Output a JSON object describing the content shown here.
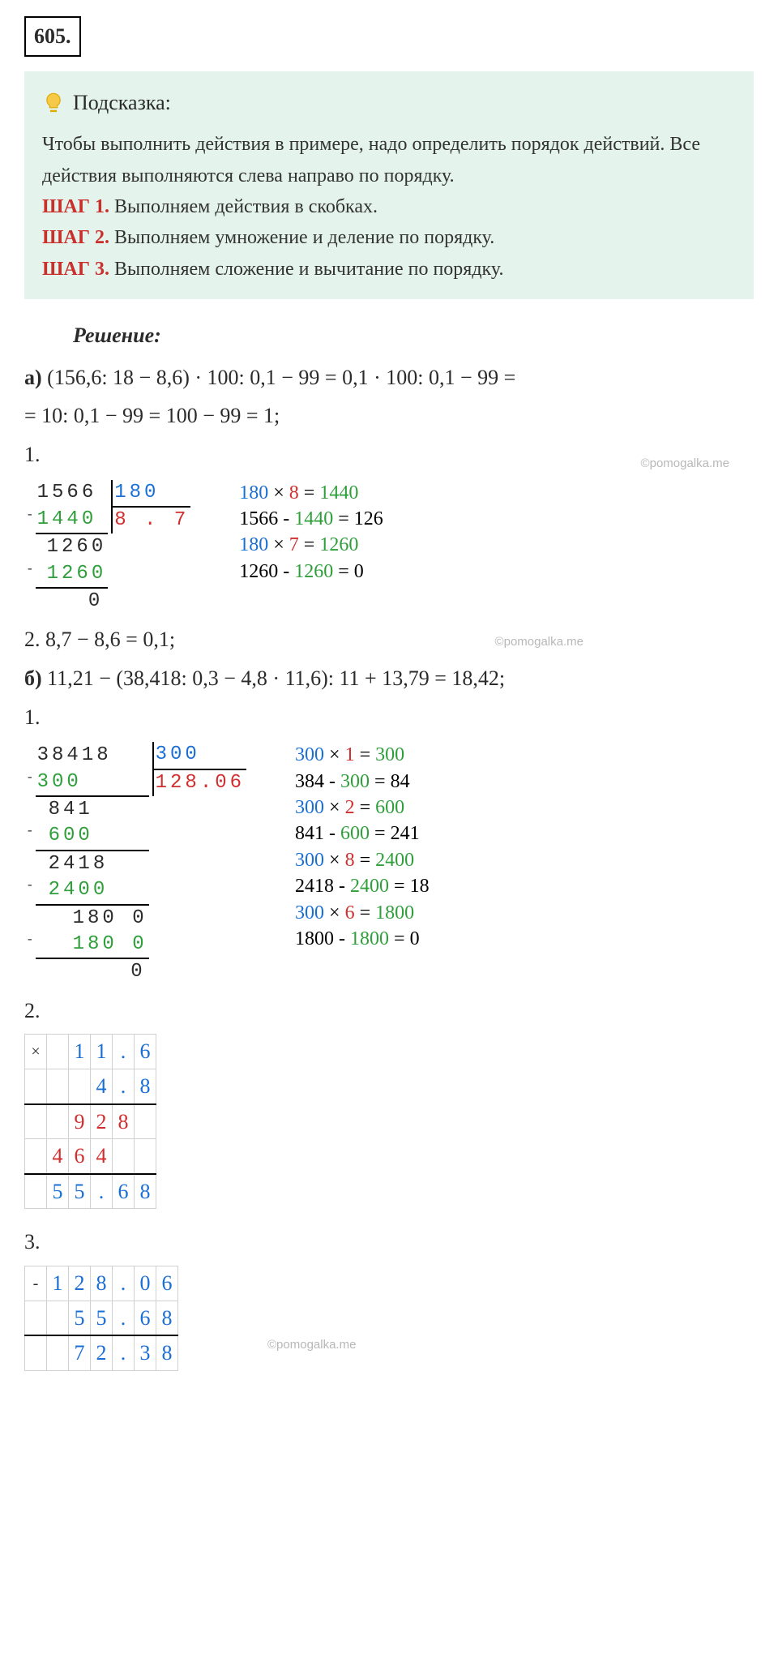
{
  "task_number": "605.",
  "hint": {
    "title": "Подсказка:",
    "intro": "Чтобы выполнить действия в примере, надо определить порядок действий. Все действия выполняются слева направо по порядку.",
    "steps": [
      {
        "label": "ШАГ 1.",
        "text": "Выполняем действия в скобках."
      },
      {
        "label": "ШАГ 2.",
        "text": "Выполняем умножение и деление по порядку."
      },
      {
        "label": "ШАГ 3.",
        "text": "Выполняем сложение и вычитание по порядку."
      }
    ]
  },
  "solution_title": "Решение:",
  "watermark_text": "©pomogalka.me",
  "partA": {
    "label": "а)",
    "expr_line1": "(156,6: 18 − 8,6) · 100: 0,1 − 99 = 0,1 · 100: 0,1 − 99 =",
    "expr_line2": "= 10: 0,1 − 99 = 100 − 99 = 1;",
    "step1_label": "1.",
    "div": {
      "dividend": "1566",
      "divisor": "180",
      "quotient": "8 . 7",
      "rows": [
        {
          "minus": true,
          "indent": 0,
          "text": "1440",
          "cls": "c-green"
        },
        {
          "minus": false,
          "indent": 1,
          "text": "1260",
          "cls": "c-black"
        },
        {
          "minus": true,
          "indent": 1,
          "text": "1260",
          "cls": "c-green",
          "ul": true
        },
        {
          "minus": false,
          "indent": 4,
          "text": "0",
          "cls": "c-black"
        }
      ],
      "notes": [
        [
          {
            "t": "180",
            "c": "c-blue"
          },
          {
            "t": " × ",
            "c": "c-black"
          },
          {
            "t": "8",
            "c": "c-red"
          },
          {
            "t": " = ",
            "c": "c-black"
          },
          {
            "t": "1440",
            "c": "c-green"
          }
        ],
        [
          {
            "t": "1566 - ",
            "c": "c-black"
          },
          {
            "t": "1440",
            "c": "c-green"
          },
          {
            "t": " = 126",
            "c": "c-black"
          }
        ],
        [
          {
            "t": "180",
            "c": "c-blue"
          },
          {
            "t": " × ",
            "c": "c-black"
          },
          {
            "t": "7",
            "c": "c-red"
          },
          {
            "t": " = ",
            "c": "c-black"
          },
          {
            "t": "1260",
            "c": "c-green"
          }
        ],
        [
          {
            "t": "1260 - ",
            "c": "c-black"
          },
          {
            "t": "1260",
            "c": "c-green"
          },
          {
            "t": " = 0",
            "c": "c-black"
          }
        ]
      ]
    },
    "step2": "2. 8,7 − 8,6 = 0,1;"
  },
  "partB": {
    "label": "б)",
    "expr": " 11,21 − (38,418: 0,3 − 4,8 · 11,6): 11 + 13,79 = 18,42;",
    "step1_label": "1.",
    "div": {
      "dividend": "38418",
      "divisor": "300",
      "quotient": "128.06",
      "rows": [
        {
          "minus": true,
          "indent": 0,
          "text": "300",
          "cls": "c-green",
          "ul": true
        },
        {
          "minus": false,
          "indent": 1,
          "text": "841",
          "cls": "c-black"
        },
        {
          "minus": true,
          "indent": 1,
          "text": "600",
          "cls": "c-green",
          "ul": true
        },
        {
          "minus": false,
          "indent": 1,
          "text": "2418",
          "cls": "c-black"
        },
        {
          "minus": true,
          "indent": 1,
          "text": "2400",
          "cls": "c-green",
          "ul": true
        },
        {
          "minus": false,
          "indent": 3,
          "text": "180 0",
          "cls": "c-black"
        },
        {
          "minus": true,
          "indent": 3,
          "text": "180 0",
          "cls": "c-green",
          "ul": true
        },
        {
          "minus": false,
          "indent": 7,
          "text": "0",
          "cls": "c-black"
        }
      ],
      "notes": [
        [
          {
            "t": "300",
            "c": "c-blue"
          },
          {
            "t": " × ",
            "c": "c-black"
          },
          {
            "t": "1",
            "c": "c-red"
          },
          {
            "t": " = ",
            "c": "c-black"
          },
          {
            "t": "300",
            "c": "c-green"
          }
        ],
        [
          {
            "t": "384 - ",
            "c": "c-black"
          },
          {
            "t": "300",
            "c": "c-green"
          },
          {
            "t": " = 84",
            "c": "c-black"
          }
        ],
        [
          {
            "t": "300",
            "c": "c-blue"
          },
          {
            "t": " × ",
            "c": "c-black"
          },
          {
            "t": "2",
            "c": "c-red"
          },
          {
            "t": " = ",
            "c": "c-black"
          },
          {
            "t": "600",
            "c": "c-green"
          }
        ],
        [
          {
            "t": "841 - ",
            "c": "c-black"
          },
          {
            "t": "600",
            "c": "c-green"
          },
          {
            "t": " = 241",
            "c": "c-black"
          }
        ],
        [
          {
            "t": "300",
            "c": "c-blue"
          },
          {
            "t": " × ",
            "c": "c-black"
          },
          {
            "t": "8",
            "c": "c-red"
          },
          {
            "t": " = ",
            "c": "c-black"
          },
          {
            "t": "2400",
            "c": "c-green"
          }
        ],
        [
          {
            "t": "2418 - ",
            "c": "c-black"
          },
          {
            "t": "2400",
            "c": "c-green"
          },
          {
            "t": " = 18",
            "c": "c-black"
          }
        ],
        [
          {
            "t": "300",
            "c": "c-blue"
          },
          {
            "t": " × ",
            "c": "c-black"
          },
          {
            "t": "6",
            "c": "c-red"
          },
          {
            "t": " = ",
            "c": "c-black"
          },
          {
            "t": "1800",
            "c": "c-green"
          }
        ],
        [
          {
            "t": "1800 - ",
            "c": "c-black"
          },
          {
            "t": "1800",
            "c": "c-green"
          },
          {
            "t": " = 0",
            "c": "c-black"
          }
        ]
      ]
    },
    "step2_label": "2.",
    "mult": {
      "op": "×",
      "rows": [
        [
          "",
          "1",
          "1",
          ".",
          "6"
        ],
        [
          "",
          "",
          "4",
          ".",
          "8"
        ],
        [
          "",
          "9",
          "2",
          "8",
          ""
        ],
        [
          "4",
          "6",
          "4",
          "",
          ""
        ],
        [
          "5",
          "5",
          ".",
          "6",
          "8"
        ]
      ],
      "line_after": [
        1,
        3
      ],
      "colors": {
        "0": "c-blue",
        "1": "c-blue",
        "2": "c-red",
        "3": "c-red",
        "4": "c-blue"
      }
    },
    "step3_label": "3.",
    "sub": {
      "op": "-",
      "rows": [
        [
          "1",
          "2",
          "8",
          ".",
          "0",
          "6"
        ],
        [
          "",
          "5",
          "5",
          ".",
          "6",
          "8"
        ],
        [
          "",
          "7",
          "2",
          ".",
          "3",
          "8"
        ]
      ],
      "line_after": [
        1
      ],
      "colors": {
        "0": "c-blue",
        "1": "c-blue",
        "2": "c-blue"
      }
    }
  },
  "style": {
    "bg": "#ffffff",
    "hint_bg": "#e4f4ed",
    "text": "#2b2b2b",
    "red": "#c9302c",
    "blue": "#1a6fd4",
    "green": "#2e9f3a",
    "grid": "#d0d0d0",
    "font_body": 24,
    "font_math": 26
  }
}
